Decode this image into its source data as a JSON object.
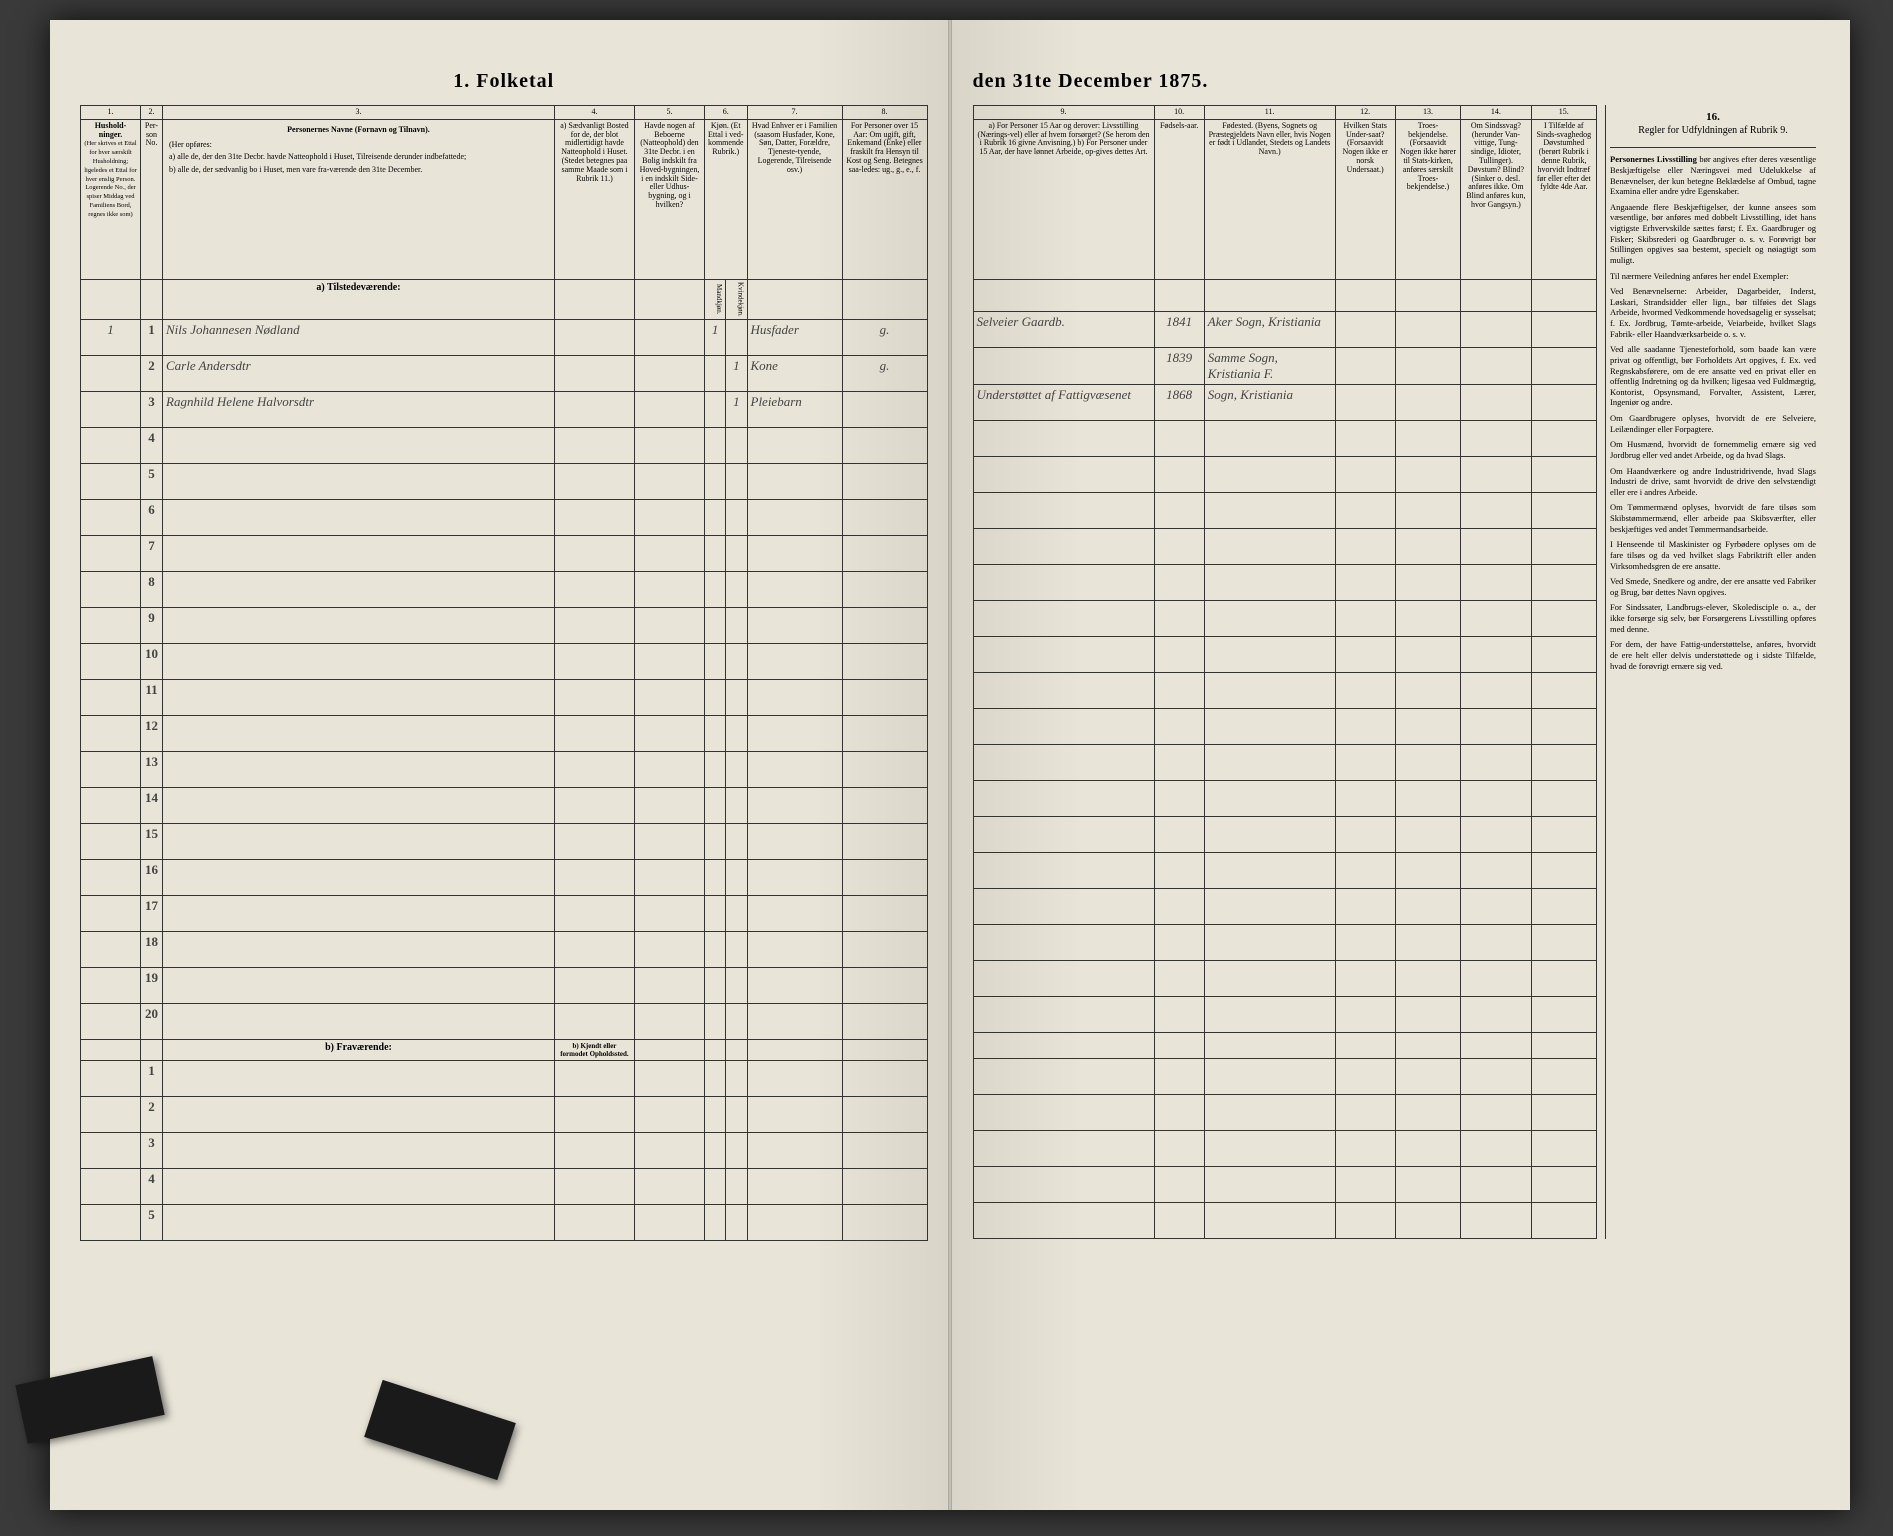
{
  "title": {
    "left": "1.  Folketal",
    "right": "den 31te December 1875."
  },
  "columns_left": {
    "c1": {
      "num": "1.",
      "head": "Hushold-\nninger.",
      "sub": "(Her skrives et Ettal for hver særskilt Husholdning; ligeledes et Ettal for hver enslig Person.\nLogerende No., der spiser Middag ved Familiens Bord, regnes ikke som)"
    },
    "c2": {
      "num": "2.",
      "head": "Per-\nson\nNo."
    },
    "c3": {
      "num": "3.",
      "head": "Personernes Navne (Fornavn og Tilnavn).",
      "sub_a": "a) alle de, der den 31te Decbr. havde Natteophold i Huset, Tilreisende derunder indbefattede;",
      "sub_b": "b) alle de, der sædvanlig bo i Huset, men vare fra-værende den 31te December."
    },
    "c4": {
      "num": "4.",
      "head": "a) Sædvanligt Bosted for de, der blot midlertidigt havde Natteophold i Huset.\n(Stedet betegnes paa samme Maade som i Rubrik 11.)"
    },
    "c5": {
      "num": "5.",
      "head": "Havde nogen af Beboerne (Natteophold) den 31te Decbr. i en Bolig indskilt fra Hoved-bygningen, i en indskilt Side-eller Udhus-bygning, og i hvilken?"
    },
    "c6": {
      "num": "6.",
      "head": "Kjøn.\n(Et Ettal i ved-kommende Rubrik.)",
      "sub1": "Mandkjøn.",
      "sub2": "Kvindekjøn."
    },
    "c7": {
      "num": "7.",
      "head": "Hvad Enhver er i Familien\n(saasom Husfader, Kone, Søn, Datter, Forældre, Tjeneste-tyende, Logerende, Tilreisende osv.)"
    },
    "c8": {
      "num": "8.",
      "head": "For Personer over 15 Aar: Om ugift, gift, Enkemand (Enke) eller fraskilt fra Hensyn til Kost og Seng.\nBetegnes saa-ledes: ug., g., e., f."
    }
  },
  "columns_right": {
    "c9": {
      "num": "9.",
      "head": "a) For Personer 15 Aar og derover: Livsstilling (Nærings-vel) eller af hvem forsørget? (Se herom den i Rubrik 16 givne Anvisning.)\nb) For Personer under 15 Aar, der have lønnet Arbeide, op-gives dettes Art."
    },
    "c10": {
      "num": "10.",
      "head": "Fødsels-aar."
    },
    "c11": {
      "num": "11.",
      "head": "Fødested.\n(Byens, Sognets og Præstegjeldets Navn eller, hvis Nogen er født i Udlandet, Stedets og Landets Navn.)"
    },
    "c12": {
      "num": "12.",
      "head": "Hvilken Stats Under-saat?\n(Forsaavidt Nogen ikke er norsk Undersaat.)"
    },
    "c13": {
      "num": "13.",
      "head": "Troes-bekjendelse.\n(Forsaavidt Nogen ikke hører til Stats-kirken, anføres særskilt Troes-bekjendelse.)"
    },
    "c14": {
      "num": "14.",
      "head": "Om Sindssvag? (herunder Van-vittige, Tung-sindige, Idioter, Tullinger).\nDøvstum? Blind?\n(Sinker o. desl. anføres ikke. Om Blind anføres kun, hvor Gangsyn.)"
    },
    "c15": {
      "num": "15.",
      "head": "I Tilfælde af Sinds-svaghedog Døvstumhed (berørt Rubrik i denne Rubrik, hvorvidt Indtræf før eller efter det fyldte 4de Aar."
    },
    "c16": {
      "num": "16.",
      "head": "Regler for Udfyldningen\naf\nRubrik 9."
    }
  },
  "section_a": "a) Tilstedeværende:",
  "section_b": "b) Fraværende:",
  "section_b4": "b) Kjendt eller formodet Opholdssted.",
  "rows": [
    {
      "hush": "1",
      "pn": "1",
      "name": "Nils Johannesen Nødland",
      "c6m": "1",
      "c7": "Husfader",
      "c8": "g.",
      "c9": "Selveier Gaardb.",
      "c10": "1841",
      "c11": "Aker Sogn, Kristiania"
    },
    {
      "hush": "",
      "pn": "2",
      "name": "Carle Andersdtr",
      "c6k": "1",
      "c7": "Kone",
      "c8": "g.",
      "c9": "",
      "c10": "1839",
      "c11": "Samme Sogn, Kristiania F."
    },
    {
      "hush": "",
      "pn": "3",
      "name": "Ragnhild Helene Halvorsdtr",
      "c6k": "1",
      "c7": "Pleiebarn",
      "c8": "",
      "c9": "Understøttet af Fattigvæsenet",
      "c10": "1868",
      "c11": "Sogn, Kristiania"
    }
  ],
  "row_nums_a": [
    "1",
    "2",
    "3",
    "4",
    "5",
    "6",
    "7",
    "8",
    "9",
    "10",
    "11",
    "12",
    "13",
    "14",
    "15",
    "16",
    "17",
    "18",
    "19",
    "20"
  ],
  "row_nums_b": [
    "1",
    "2",
    "3",
    "4",
    "5"
  ],
  "rubrik": {
    "title": "Personernes Livsstilling",
    "p1": "bør angives efter deres væsentlige Beskjæftigelse eller Næringsvei med Udelukkelse af Benævnelser, der kun betegne Beklædelse af Ombud, tagne Examina eller andre ydre Egenskaber.",
    "p2": "Angaaende flere Beskjæftigelser, der kunne ansees som væsentlige, bør anføres med dobbelt Livsstilling, idet hans vigtigste Erhvervskilde sættes først; f. Ex. Gaardbruger og Fisker; Skibsrederi og Gaardbruger o. s. v. Forøvrigt bør Stillingen opgives saa bestemt, specielt og nøiagtigt som muligt.",
    "p3": "Til nærmere Veiledning anføres her endel Exempler:",
    "p4": "Ved Benævnelserne: Arbeider, Dagarbeider, Inderst, Løskari, Strandsidder eller lign., bør tilføies det Slags Arbeide, hvormed Vedkommende hovedsagelig er sysselsat; f. Ex. Jordbrug, Tømte-arbeide, Veiarbeide, hvilket Slags Fabrik- eller Haandværksarbeide o. s. v.",
    "p5": "Ved alle saadanne Tjenesteforhold, som baade kan være privat og offentligt, bør Forholdets Art opgives, f. Ex. ved Regnskabsførere, om de ere ansatte ved en privat eller en offentlig Indretning og da hvilken; ligesaa ved Fuldmægtig, Kontorist, Opsynsmand, Forvalter, Assistent, Lærer, Ingeniør og andre.",
    "p6": "Om Gaardbrugere oplyses, hvorvidt de ere Selveiere, Leilændinger eller Forpagtere.",
    "p7": "Om Husmænd, hvorvidt de fornemmelig ernære sig ved Jordbrug eller ved andet Arbeide, og da hvad Slags.",
    "p8": "Om Haandværkere og andre Industridrivende, hvad Slags Industri de drive, samt hvorvidt de drive den selvstændigt eller ere i andres Arbeide.",
    "p9": "Om Tømmermænd oplyses, hvorvidt de fare tilsøs som Skibstømmermænd, eller arbeide paa Skibsværfter, eller beskjæftiges ved andet Tømmermands­arbeide.",
    "p10": "I Henseende til Maskinister og Fyrbødere oplyses om de fare tilsøs og da ved hvilket slags Fabriktrift eller anden Virksomhedsgren de ere ansatte.",
    "p11": "Ved Smede, Snedkere og andre, der ere ansatte ved Fabriker og Brug, bør dettes Navn opgives.",
    "p12": "For Sindssater, Landbrugs-elever, Skoledisciple o. a., der ikke forsørge sig selv, bør Forsørgerens Livsstilling opføres med denne.",
    "p13": "For dem, der have Fattig-understøttelse, anføres, hvorvidt de ere helt eller delvis understøttede og i sidste Tilfælde, hvad de forøvrigt ernære sig ved."
  }
}
